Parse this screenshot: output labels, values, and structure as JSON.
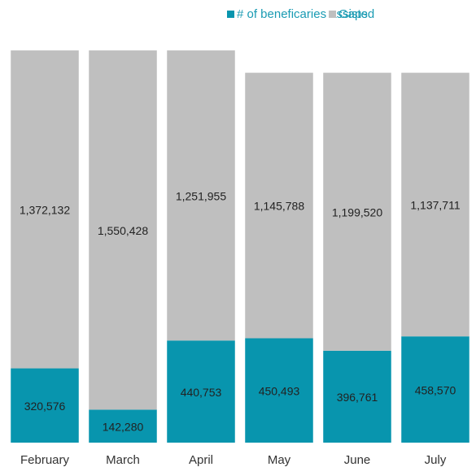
{
  "chart_data": {
    "type": "stacked_bar",
    "categories": [
      "February",
      "March",
      "April",
      "May",
      "June",
      "July"
    ],
    "series": [
      {
        "name": "# of beneficaries assisted",
        "color": "#0895ae",
        "values": [
          320576,
          142280,
          440753,
          450493,
          396761,
          458570
        ],
        "value_labels": [
          "320,576",
          "142,280",
          "440,753",
          "450,493",
          "396,761",
          "458,570"
        ]
      },
      {
        "name": "Gaps",
        "color": "#bfbfbf",
        "values": [
          1372132,
          1550428,
          1251955,
          1145788,
          1199520,
          1137711
        ],
        "value_labels": [
          "1,372,132",
          "1,550,428",
          "1,251,955",
          "1,145,788",
          "1,199,520",
          "1,137,711"
        ]
      }
    ],
    "ylim": [
      0,
      1700000
    ]
  }
}
